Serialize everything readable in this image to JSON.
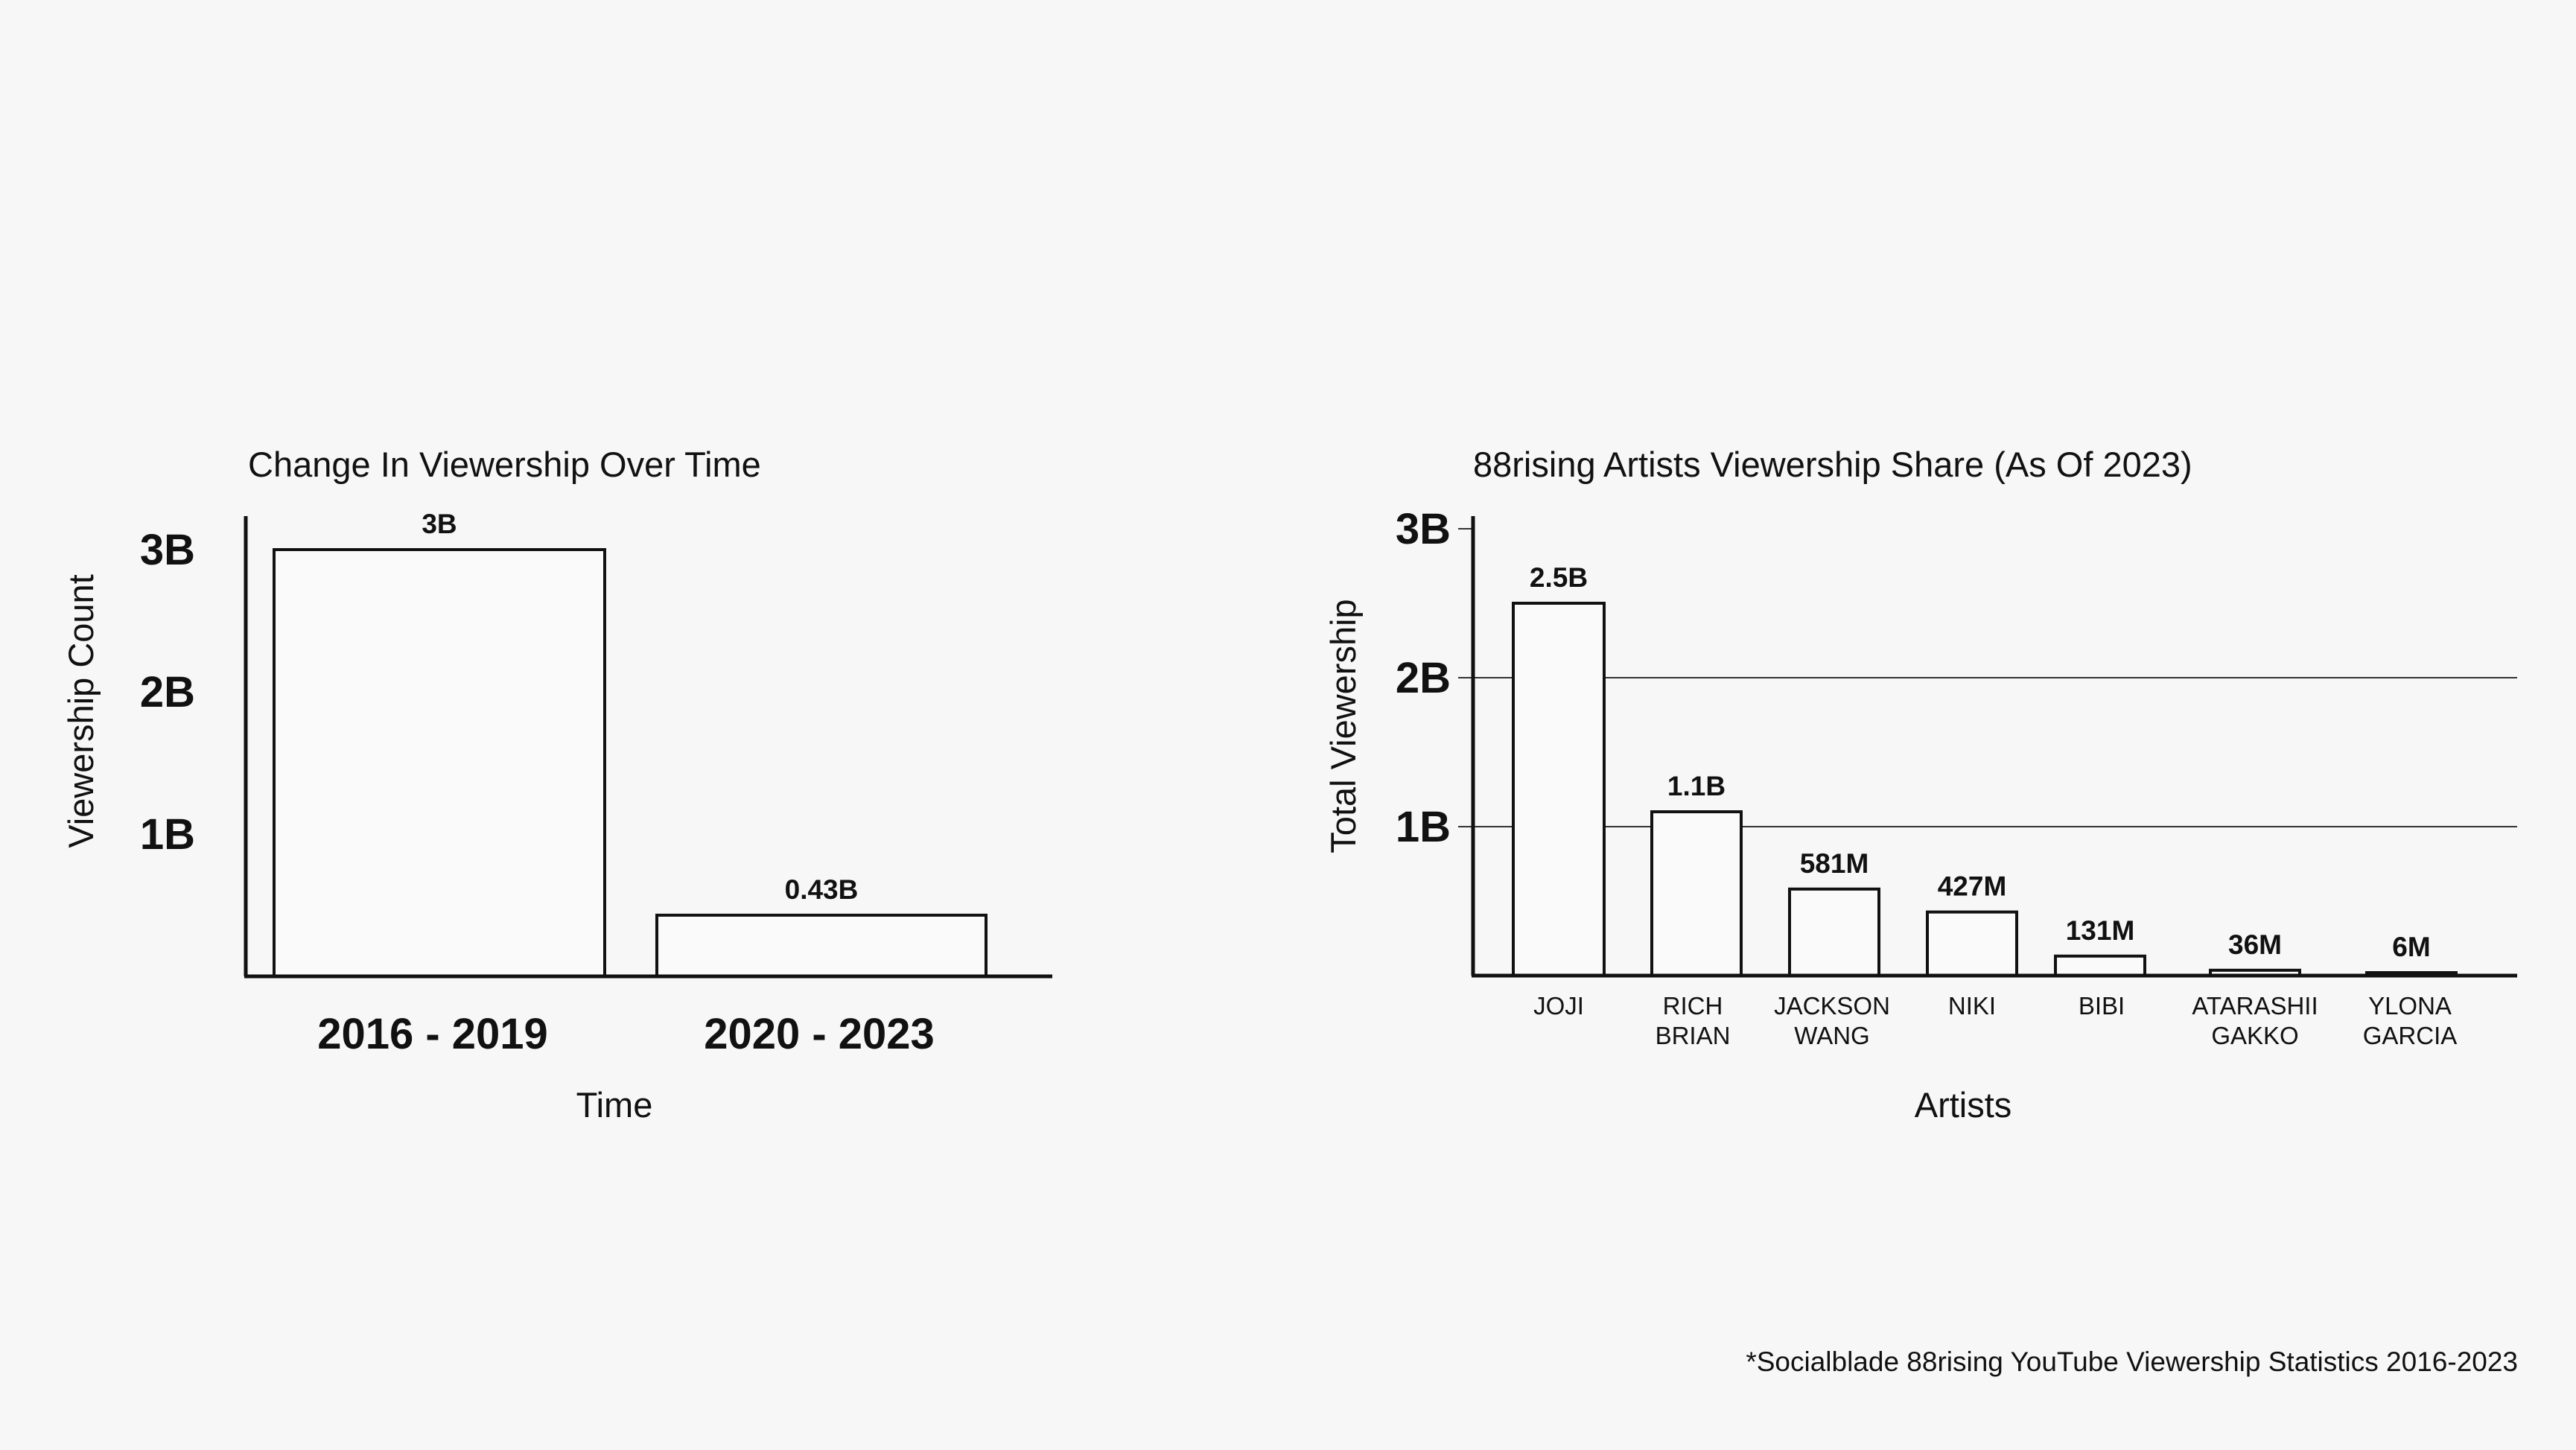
{
  "chart_data": [
    {
      "type": "bar",
      "title": "Change In Viewership Over Time",
      "xlabel": "Time",
      "ylabel": "Viewership Count",
      "categories": [
        "2016 - 2019",
        "2020 - 2023"
      ],
      "values": [
        3,
        0.43
      ],
      "value_labels": [
        "3B",
        "0.43B"
      ],
      "ylim": [
        0,
        3
      ],
      "yticks": [
        {
          "value": 1,
          "label": "1B"
        },
        {
          "value": 2,
          "label": "2B"
        },
        {
          "value": 3,
          "label": "3B"
        }
      ],
      "grid": false
    },
    {
      "type": "bar",
      "title": "88rising Artists Viewership Share (As Of 2023)",
      "xlabel": "Artists",
      "ylabel": "Total Viewership",
      "categories": [
        [
          "JOJI"
        ],
        [
          "RICH",
          "BRIAN"
        ],
        [
          "JACKSON",
          "WANG"
        ],
        [
          "NIKI"
        ],
        [
          "BIBI"
        ],
        [
          "ATARASHII",
          "GAKKO"
        ],
        [
          "YLONA",
          "GARCIA"
        ]
      ],
      "values": [
        2.5,
        1.1,
        0.581,
        0.427,
        0.131,
        0.036,
        0.006
      ],
      "value_labels": [
        "2.5B",
        "1.1B",
        "581M",
        "427M",
        "131M",
        "36M",
        "6M"
      ],
      "ylim": [
        0,
        3
      ],
      "yticks": [
        {
          "value": 1,
          "label": "1B"
        },
        {
          "value": 2,
          "label": "2B"
        },
        {
          "value": 3,
          "label": "3B"
        }
      ],
      "grid": true
    }
  ],
  "footnote": "*Socialblade 88rising YouTube Viewership Statistics 2016-2023"
}
